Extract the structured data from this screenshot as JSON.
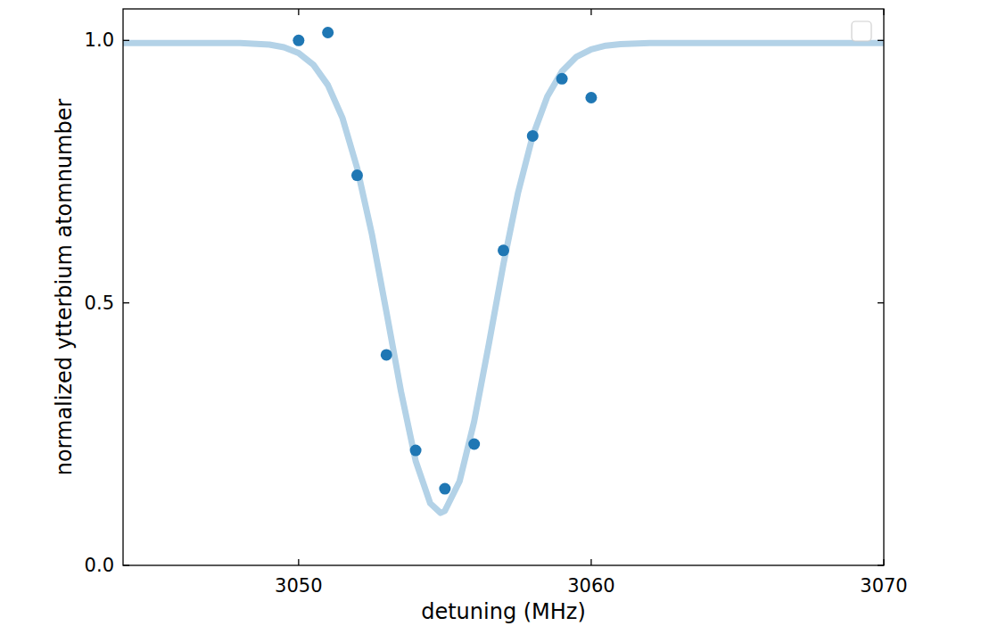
{
  "chart_data": {
    "type": "scatter",
    "xlabel": "detuning (MHz)",
    "ylabel": "normalized ytterbium atomnumber",
    "xlim": [
      3044,
      3070
    ],
    "ylim": [
      0,
      1.06
    ],
    "xticks": [
      3050,
      3060,
      3070
    ],
    "yticks": [
      {
        "value": 0,
        "label": "0.0"
      },
      {
        "value": 0.5,
        "label": "0.5"
      },
      {
        "value": 1,
        "label": "1.0"
      }
    ],
    "legend": "upper right",
    "series": [
      {
        "type": "line",
        "color": "#b3d2e7",
        "x": [
          3044,
          3046,
          3048,
          3049,
          3049.5,
          3050,
          3050.5,
          3051,
          3051.5,
          3052,
          3052.5,
          3053,
          3053.5,
          3054,
          3054.5,
          3054.85,
          3055,
          3055.5,
          3056,
          3056.5,
          3057,
          3057.5,
          3058,
          3058.5,
          3059,
          3059.5,
          3060,
          3060.5,
          3061,
          3062,
          3064,
          3066,
          3068,
          3070
        ],
        "values": [
          0.995,
          0.995,
          0.995,
          0.992,
          0.987,
          0.976,
          0.954,
          0.915,
          0.852,
          0.757,
          0.632,
          0.483,
          0.331,
          0.199,
          0.118,
          0.1,
          0.104,
          0.16,
          0.274,
          0.421,
          0.574,
          0.71,
          0.818,
          0.893,
          0.941,
          0.969,
          0.983,
          0.99,
          0.993,
          0.995,
          0.995,
          0.995,
          0.995,
          0.995
        ]
      },
      {
        "type": "scatter",
        "color": "#1f77b4",
        "marker": "circle",
        "x": [
          3050,
          3051,
          3052,
          3053,
          3054,
          3055,
          3056,
          3057,
          3058,
          3059,
          3060
        ],
        "values": [
          1.0,
          1.015,
          0.743,
          0.401,
          0.219,
          0.146,
          0.231,
          0.6,
          0.818,
          0.927,
          0.891
        ]
      }
    ]
  }
}
